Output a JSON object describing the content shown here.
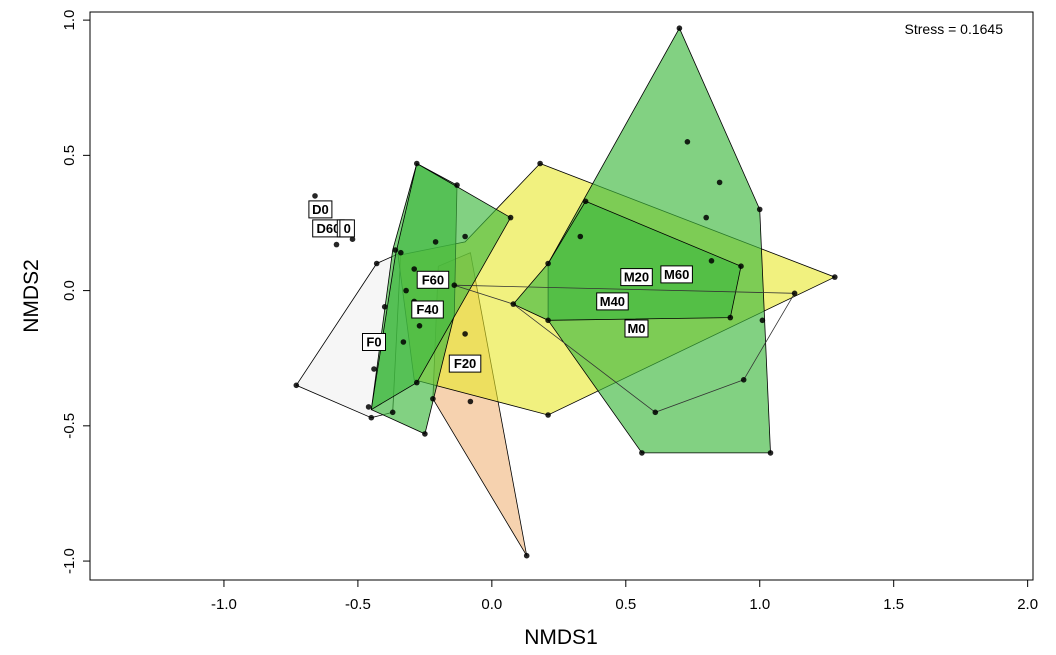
{
  "chart_data": {
    "type": "scatter",
    "subtype": "nmds-ordination-hulls",
    "title": "",
    "xlabel": "NMDS1",
    "ylabel": "NMDS2",
    "xlim": [
      -1.5,
      2.02
    ],
    "ylim": [
      -1.07,
      1.03
    ],
    "x_ticks": [
      "-1.0",
      "-0.5",
      "0.0",
      "0.5",
      "1.0",
      "1.5",
      "2.0"
    ],
    "y_ticks": [
      "-1.0",
      "-0.5",
      "0.0",
      "0.5",
      "1.0"
    ],
    "grid": false,
    "annotation": "Stress = 0.1645",
    "colors": {
      "green": "#3fb83f",
      "yellow": "#e8e82a",
      "peach": "#f0b47a",
      "light_gray": "#eeeeee",
      "points": "#000000"
    },
    "hulls": [
      {
        "color": "#f6f6f6",
        "opacity": 1.0,
        "vertices": [
          [
            -0.73,
            -0.35
          ],
          [
            -0.43,
            0.1
          ],
          [
            -0.34,
            0.14
          ],
          [
            -0.37,
            -0.45
          ],
          [
            -0.45,
            -0.47
          ]
        ]
      },
      {
        "color": "#f0b47a",
        "opacity": 0.6,
        "vertices": [
          [
            -0.2,
            0.09
          ],
          [
            -0.08,
            0.14
          ],
          [
            0.13,
            -0.98
          ],
          [
            -0.22,
            -0.4
          ]
        ]
      },
      {
        "color": "#e8e82a",
        "opacity": 0.6,
        "vertices": [
          [
            -0.35,
            0.13
          ],
          [
            -0.1,
            0.18
          ],
          [
            0.18,
            0.47
          ],
          [
            1.28,
            0.05
          ],
          [
            0.21,
            -0.46
          ],
          [
            -0.29,
            -0.33
          ]
        ]
      },
      {
        "color": "#3fb83f",
        "opacity": 0.65,
        "vertices": [
          [
            -0.28,
            0.47
          ],
          [
            -0.13,
            0.39
          ],
          [
            -0.14,
            -0.09
          ],
          [
            -0.25,
            -0.53
          ],
          [
            -0.45,
            -0.44
          ],
          [
            -0.37,
            0.15
          ]
        ]
      },
      {
        "color": "#3fb83f",
        "opacity": 0.65,
        "vertices": [
          [
            -0.28,
            0.47
          ],
          [
            0.07,
            0.27
          ],
          [
            -0.28,
            -0.34
          ],
          [
            -0.45,
            -0.44
          ],
          [
            -0.36,
            0.13
          ]
        ]
      },
      {
        "color": "#3fb83f",
        "opacity": 0.65,
        "vertices": [
          [
            0.7,
            0.97
          ],
          [
            1.0,
            0.3
          ],
          [
            1.04,
            -0.6
          ],
          [
            0.56,
            -0.6
          ],
          [
            0.21,
            -0.11
          ],
          [
            0.21,
            0.1
          ]
        ]
      },
      {
        "color": "#3fb83f",
        "opacity": 0.65,
        "vertices": [
          [
            0.35,
            0.33
          ],
          [
            0.93,
            0.09
          ],
          [
            0.89,
            -0.1
          ],
          [
            0.21,
            -0.11
          ],
          [
            0.08,
            -0.05
          ],
          [
            0.21,
            0.1
          ]
        ]
      }
    ],
    "outline_hulls": [
      {
        "vertices": [
          [
            -0.14,
            0.02
          ],
          [
            1.13,
            -0.01
          ],
          [
            0.94,
            -0.33
          ],
          [
            0.61,
            -0.45
          ],
          [
            0.08,
            -0.05
          ]
        ]
      }
    ],
    "points": [
      [
        -0.66,
        0.35
      ],
      [
        -0.62,
        0.29
      ],
      [
        -0.6,
        0.24
      ],
      [
        -0.58,
        0.17
      ],
      [
        -0.52,
        0.19
      ],
      [
        -0.73,
        -0.35
      ],
      [
        -0.43,
        0.1
      ],
      [
        -0.34,
        0.14
      ],
      [
        -0.37,
        -0.45
      ],
      [
        -0.45,
        -0.47
      ],
      [
        -0.29,
        -0.04
      ],
      [
        -0.25,
        -0.07
      ],
      [
        -0.44,
        -0.29
      ],
      [
        -0.46,
        -0.43
      ],
      [
        -0.4,
        -0.06
      ],
      [
        0.13,
        -0.98
      ],
      [
        -0.08,
        -0.41
      ],
      [
        -0.1,
        -0.16
      ],
      [
        -0.22,
        -0.4
      ],
      [
        -0.28,
        0.47
      ],
      [
        -0.13,
        0.39
      ],
      [
        -0.25,
        -0.53
      ],
      [
        -0.36,
        0.15
      ],
      [
        -0.29,
        0.08
      ],
      [
        0.07,
        0.27
      ],
      [
        -0.1,
        0.2
      ],
      [
        -0.21,
        0.18
      ],
      [
        -0.28,
        -0.34
      ],
      [
        -0.32,
        0.0
      ],
      [
        0.18,
        0.47
      ],
      [
        1.28,
        0.05
      ],
      [
        0.21,
        -0.46
      ],
      [
        -0.27,
        -0.13
      ],
      [
        -0.33,
        -0.19
      ],
      [
        0.7,
        0.97
      ],
      [
        0.73,
        0.55
      ],
      [
        0.85,
        0.4
      ],
      [
        1.0,
        0.3
      ],
      [
        1.04,
        -0.6
      ],
      [
        0.56,
        -0.6
      ],
      [
        0.35,
        0.33
      ],
      [
        0.33,
        0.2
      ],
      [
        0.8,
        0.27
      ],
      [
        0.93,
        0.09
      ],
      [
        0.89,
        -0.1
      ],
      [
        0.82,
        0.11
      ],
      [
        0.21,
        0.1
      ],
      [
        0.21,
        -0.11
      ],
      [
        0.08,
        -0.05
      ],
      [
        0.61,
        -0.45
      ],
      [
        0.94,
        -0.33
      ],
      [
        1.01,
        -0.11
      ],
      [
        1.13,
        -0.01
      ],
      [
        0.5,
        -0.02
      ],
      [
        0.44,
        -0.04
      ],
      [
        -0.14,
        0.02
      ]
    ],
    "group_labels": [
      {
        "text": "D0",
        "x": -0.64,
        "y": 0.3
      },
      {
        "text": "D60",
        "x": -0.61,
        "y": 0.23
      },
      {
        "text": "0",
        "x": -0.55,
        "y": 0.23
      },
      {
        "text": "0",
        "x": -0.54,
        "y": 0.23
      },
      {
        "text": "F60",
        "x": -0.22,
        "y": 0.04
      },
      {
        "text": "F40",
        "x": -0.24,
        "y": -0.07
      },
      {
        "text": "F0",
        "x": -0.44,
        "y": -0.19
      },
      {
        "text": "F20",
        "x": -0.1,
        "y": -0.27
      },
      {
        "text": "M20",
        "x": 0.54,
        "y": 0.05
      },
      {
        "text": "M60",
        "x": 0.69,
        "y": 0.06
      },
      {
        "text": "M40",
        "x": 0.45,
        "y": -0.04
      },
      {
        "text": "M0",
        "x": 0.54,
        "y": -0.14
      }
    ]
  }
}
